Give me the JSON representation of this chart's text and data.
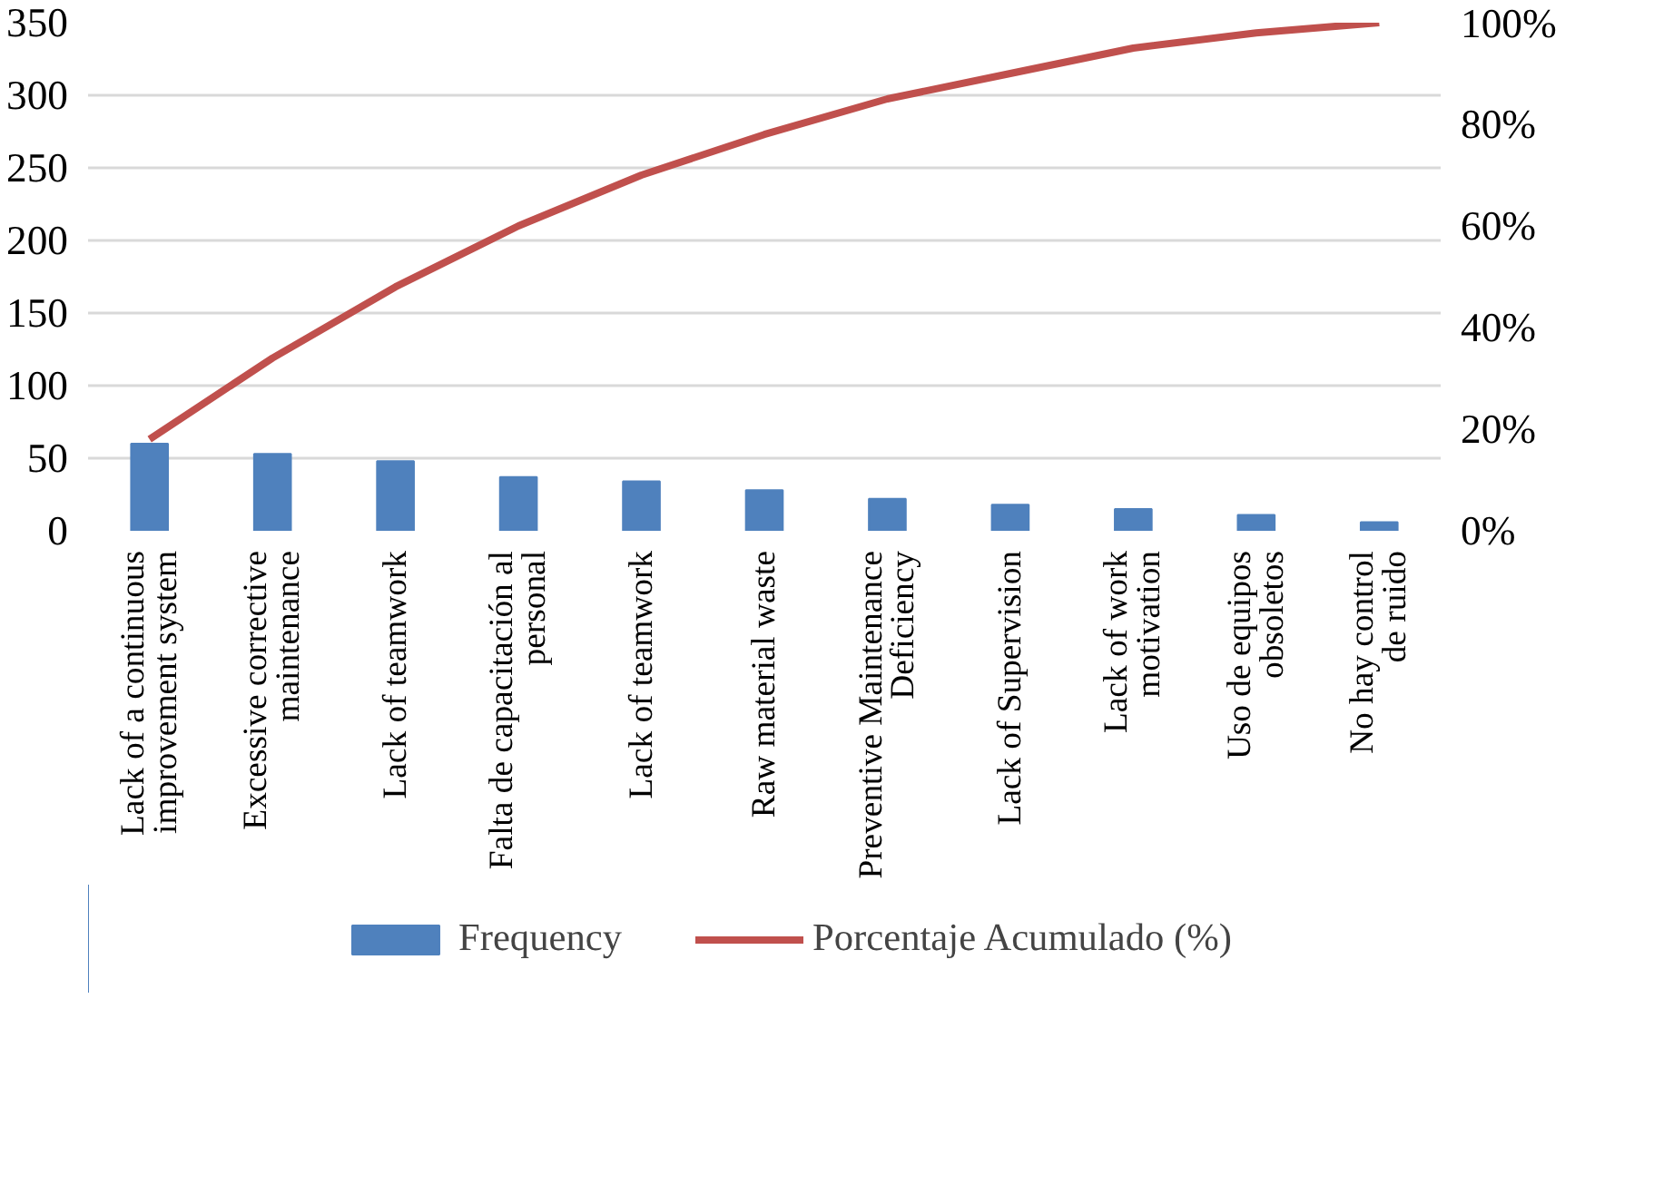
{
  "chart_data": {
    "type": "bar",
    "categories": [
      "Lack of a continuous\nimprovement system",
      "Excessive corrective\nmaintenance",
      "Lack of teamwork",
      "Falta de capacitación al\npersonal",
      "Lack of teamwork",
      "Raw material waste",
      "Preventive Maintenance\nDeficiency",
      "Lack of Supervision",
      "Lack of work\nmotivation",
      "Uso de equipos\nobsoletos",
      "No hay control\nde ruido"
    ],
    "series": [
      {
        "name": "Frequency",
        "type": "bar",
        "color": "#4f81bd",
        "values": [
          60,
          53,
          48,
          37,
          34,
          28,
          22,
          18,
          15,
          11,
          6
        ]
      },
      {
        "name": "Porcentaje Acumulado (%)",
        "type": "line",
        "axis": "y2",
        "color": "#c0504d",
        "values": [
          18,
          34,
          48,
          60,
          70,
          78,
          85,
          90,
          95,
          98,
          100
        ]
      }
    ],
    "ylim": [
      0,
      350
    ],
    "yticks": [
      0,
      50,
      100,
      150,
      200,
      250,
      300,
      350
    ],
    "y2lim": [
      0,
      100
    ],
    "y2ticks": [
      {
        "value": 0,
        "label": "0%"
      },
      {
        "value": 20,
        "label": "20%"
      },
      {
        "value": 40,
        "label": "40%"
      },
      {
        "value": 60,
        "label": "60%"
      },
      {
        "value": 80,
        "label": "80%"
      },
      {
        "value": 100,
        "label": "100%"
      }
    ],
    "grid": "y",
    "legend": "bottom",
    "marker": "none",
    "line_style": "solid"
  }
}
